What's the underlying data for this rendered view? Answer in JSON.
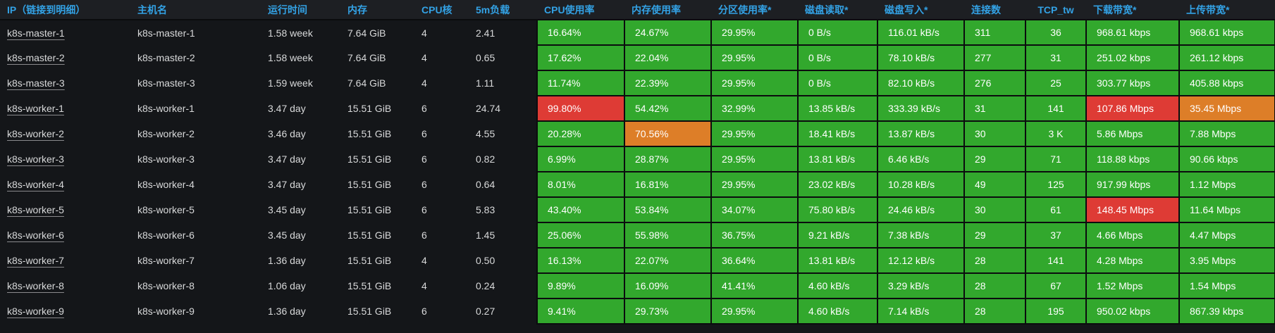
{
  "colors": {
    "header_text": "#33a2e5",
    "body_text": "#d8d9da",
    "ok": "#32a82d",
    "warn": "#dd7e28",
    "crit": "#de3b35",
    "panel_bg": "#141619",
    "header_bg": "#1d1f23"
  },
  "panel": {
    "columns": [
      {
        "label": "IP（链接到明细）",
        "key": "ip",
        "kind": "link"
      },
      {
        "label": "主机名",
        "key": "hostname",
        "kind": "text"
      },
      {
        "label": "运行时间",
        "key": "uptime",
        "kind": "text"
      },
      {
        "label": "内存",
        "key": "memory",
        "kind": "text"
      },
      {
        "label": "CPU核",
        "key": "cpu_cores",
        "kind": "text"
      },
      {
        "label": "5m负载",
        "key": "load_5m",
        "kind": "text"
      },
      {
        "label": "CPU使用率",
        "key": "cpu_usage",
        "kind": "metric"
      },
      {
        "label": "内存使用率",
        "key": "mem_usage",
        "kind": "metric"
      },
      {
        "label": "分区使用率*",
        "key": "partition_usage",
        "kind": "metric"
      },
      {
        "label": "磁盘读取*",
        "key": "disk_read",
        "kind": "metric"
      },
      {
        "label": "磁盘写入*",
        "key": "disk_write",
        "kind": "metric"
      },
      {
        "label": "连接数",
        "key": "connections",
        "kind": "metric"
      },
      {
        "label": "TCP_tw",
        "key": "tcp_tw",
        "kind": "metric",
        "align": "center"
      },
      {
        "label": "下载带宽*",
        "key": "download_bw",
        "kind": "metric"
      },
      {
        "label": "上传带宽*",
        "key": "upload_bw",
        "kind": "metric"
      }
    ],
    "rows": [
      {
        "ip": "k8s-master-1",
        "hostname": "k8s-master-1",
        "uptime": "1.58 week",
        "memory": "7.64 GiB",
        "cpu_cores": "4",
        "load_5m": "2.41",
        "cpu_usage": {
          "value": "16.64%",
          "level": "ok"
        },
        "mem_usage": {
          "value": "24.67%",
          "level": "ok"
        },
        "partition_usage": {
          "value": "29.95%",
          "level": "ok"
        },
        "disk_read": {
          "value": "0 B/s",
          "level": "ok"
        },
        "disk_write": {
          "value": "116.01 kB/s",
          "level": "ok"
        },
        "connections": {
          "value": "311",
          "level": "ok"
        },
        "tcp_tw": {
          "value": "36",
          "level": "ok"
        },
        "download_bw": {
          "value": "968.61 kbps",
          "level": "ok"
        },
        "upload_bw": {
          "value": "968.61 kbps",
          "level": "ok"
        }
      },
      {
        "ip": "k8s-master-2",
        "hostname": "k8s-master-2",
        "uptime": "1.58 week",
        "memory": "7.64 GiB",
        "cpu_cores": "4",
        "load_5m": "0.65",
        "cpu_usage": {
          "value": "17.62%",
          "level": "ok"
        },
        "mem_usage": {
          "value": "22.04%",
          "level": "ok"
        },
        "partition_usage": {
          "value": "29.95%",
          "level": "ok"
        },
        "disk_read": {
          "value": "0 B/s",
          "level": "ok"
        },
        "disk_write": {
          "value": "78.10 kB/s",
          "level": "ok"
        },
        "connections": {
          "value": "277",
          "level": "ok"
        },
        "tcp_tw": {
          "value": "31",
          "level": "ok"
        },
        "download_bw": {
          "value": "251.02 kbps",
          "level": "ok"
        },
        "upload_bw": {
          "value": "261.12 kbps",
          "level": "ok"
        }
      },
      {
        "ip": "k8s-master-3",
        "hostname": "k8s-master-3",
        "uptime": "1.59 week",
        "memory": "7.64 GiB",
        "cpu_cores": "4",
        "load_5m": "1.11",
        "cpu_usage": {
          "value": "11.74%",
          "level": "ok"
        },
        "mem_usage": {
          "value": "22.39%",
          "level": "ok"
        },
        "partition_usage": {
          "value": "29.95%",
          "level": "ok"
        },
        "disk_read": {
          "value": "0 B/s",
          "level": "ok"
        },
        "disk_write": {
          "value": "82.10 kB/s",
          "level": "ok"
        },
        "connections": {
          "value": "276",
          "level": "ok"
        },
        "tcp_tw": {
          "value": "25",
          "level": "ok"
        },
        "download_bw": {
          "value": "303.77 kbps",
          "level": "ok"
        },
        "upload_bw": {
          "value": "405.88 kbps",
          "level": "ok"
        }
      },
      {
        "ip": "k8s-worker-1",
        "hostname": "k8s-worker-1",
        "uptime": "3.47 day",
        "memory": "15.51 GiB",
        "cpu_cores": "6",
        "load_5m": "24.74",
        "cpu_usage": {
          "value": "99.80%",
          "level": "crit"
        },
        "mem_usage": {
          "value": "54.42%",
          "level": "ok"
        },
        "partition_usage": {
          "value": "32.99%",
          "level": "ok"
        },
        "disk_read": {
          "value": "13.85 kB/s",
          "level": "ok"
        },
        "disk_write": {
          "value": "333.39 kB/s",
          "level": "ok"
        },
        "connections": {
          "value": "31",
          "level": "ok"
        },
        "tcp_tw": {
          "value": "141",
          "level": "ok"
        },
        "download_bw": {
          "value": "107.86 Mbps",
          "level": "crit"
        },
        "upload_bw": {
          "value": "35.45 Mbps",
          "level": "warn"
        }
      },
      {
        "ip": "k8s-worker-2",
        "hostname": "k8s-worker-2",
        "uptime": "3.46 day",
        "memory": "15.51 GiB",
        "cpu_cores": "6",
        "load_5m": "4.55",
        "cpu_usage": {
          "value": "20.28%",
          "level": "ok"
        },
        "mem_usage": {
          "value": "70.56%",
          "level": "warn"
        },
        "partition_usage": {
          "value": "29.95%",
          "level": "ok"
        },
        "disk_read": {
          "value": "18.41 kB/s",
          "level": "ok"
        },
        "disk_write": {
          "value": "13.87 kB/s",
          "level": "ok"
        },
        "connections": {
          "value": "30",
          "level": "ok"
        },
        "tcp_tw": {
          "value": "3 K",
          "level": "ok"
        },
        "download_bw": {
          "value": "5.86 Mbps",
          "level": "ok"
        },
        "upload_bw": {
          "value": "7.88 Mbps",
          "level": "ok"
        }
      },
      {
        "ip": "k8s-worker-3",
        "hostname": "k8s-worker-3",
        "uptime": "3.47 day",
        "memory": "15.51 GiB",
        "cpu_cores": "6",
        "load_5m": "0.82",
        "cpu_usage": {
          "value": "6.99%",
          "level": "ok"
        },
        "mem_usage": {
          "value": "28.87%",
          "level": "ok"
        },
        "partition_usage": {
          "value": "29.95%",
          "level": "ok"
        },
        "disk_read": {
          "value": "13.81 kB/s",
          "level": "ok"
        },
        "disk_write": {
          "value": "6.46 kB/s",
          "level": "ok"
        },
        "connections": {
          "value": "29",
          "level": "ok"
        },
        "tcp_tw": {
          "value": "71",
          "level": "ok"
        },
        "download_bw": {
          "value": "118.88 kbps",
          "level": "ok"
        },
        "upload_bw": {
          "value": "90.66 kbps",
          "level": "ok"
        }
      },
      {
        "ip": "k8s-worker-4",
        "hostname": "k8s-worker-4",
        "uptime": "3.47 day",
        "memory": "15.51 GiB",
        "cpu_cores": "6",
        "load_5m": "0.64",
        "cpu_usage": {
          "value": "8.01%",
          "level": "ok"
        },
        "mem_usage": {
          "value": "16.81%",
          "level": "ok"
        },
        "partition_usage": {
          "value": "29.95%",
          "level": "ok"
        },
        "disk_read": {
          "value": "23.02 kB/s",
          "level": "ok"
        },
        "disk_write": {
          "value": "10.28 kB/s",
          "level": "ok"
        },
        "connections": {
          "value": "49",
          "level": "ok"
        },
        "tcp_tw": {
          "value": "125",
          "level": "ok"
        },
        "download_bw": {
          "value": "917.99 kbps",
          "level": "ok"
        },
        "upload_bw": {
          "value": "1.12 Mbps",
          "level": "ok"
        }
      },
      {
        "ip": "k8s-worker-5",
        "hostname": "k8s-worker-5",
        "uptime": "3.45 day",
        "memory": "15.51 GiB",
        "cpu_cores": "6",
        "load_5m": "5.83",
        "cpu_usage": {
          "value": "43.40%",
          "level": "ok"
        },
        "mem_usage": {
          "value": "53.84%",
          "level": "ok"
        },
        "partition_usage": {
          "value": "34.07%",
          "level": "ok"
        },
        "disk_read": {
          "value": "75.80 kB/s",
          "level": "ok"
        },
        "disk_write": {
          "value": "24.46 kB/s",
          "level": "ok"
        },
        "connections": {
          "value": "30",
          "level": "ok"
        },
        "tcp_tw": {
          "value": "61",
          "level": "ok"
        },
        "download_bw": {
          "value": "148.45 Mbps",
          "level": "crit"
        },
        "upload_bw": {
          "value": "11.64 Mbps",
          "level": "ok"
        }
      },
      {
        "ip": "k8s-worker-6",
        "hostname": "k8s-worker-6",
        "uptime": "3.45 day",
        "memory": "15.51 GiB",
        "cpu_cores": "6",
        "load_5m": "1.45",
        "cpu_usage": {
          "value": "25.06%",
          "level": "ok"
        },
        "mem_usage": {
          "value": "55.98%",
          "level": "ok"
        },
        "partition_usage": {
          "value": "36.75%",
          "level": "ok"
        },
        "disk_read": {
          "value": "9.21 kB/s",
          "level": "ok"
        },
        "disk_write": {
          "value": "7.38 kB/s",
          "level": "ok"
        },
        "connections": {
          "value": "29",
          "level": "ok"
        },
        "tcp_tw": {
          "value": "37",
          "level": "ok"
        },
        "download_bw": {
          "value": "4.66 Mbps",
          "level": "ok"
        },
        "upload_bw": {
          "value": "4.47 Mbps",
          "level": "ok"
        }
      },
      {
        "ip": "k8s-worker-7",
        "hostname": "k8s-worker-7",
        "uptime": "1.36 day",
        "memory": "15.51 GiB",
        "cpu_cores": "4",
        "load_5m": "0.50",
        "cpu_usage": {
          "value": "16.13%",
          "level": "ok"
        },
        "mem_usage": {
          "value": "22.07%",
          "level": "ok"
        },
        "partition_usage": {
          "value": "36.64%",
          "level": "ok"
        },
        "disk_read": {
          "value": "13.81 kB/s",
          "level": "ok"
        },
        "disk_write": {
          "value": "12.12 kB/s",
          "level": "ok"
        },
        "connections": {
          "value": "28",
          "level": "ok"
        },
        "tcp_tw": {
          "value": "141",
          "level": "ok"
        },
        "download_bw": {
          "value": "4.28 Mbps",
          "level": "ok"
        },
        "upload_bw": {
          "value": "3.95 Mbps",
          "level": "ok"
        }
      },
      {
        "ip": "k8s-worker-8",
        "hostname": "k8s-worker-8",
        "uptime": "1.06 day",
        "memory": "15.51 GiB",
        "cpu_cores": "4",
        "load_5m": "0.24",
        "cpu_usage": {
          "value": "9.89%",
          "level": "ok"
        },
        "mem_usage": {
          "value": "16.09%",
          "level": "ok"
        },
        "partition_usage": {
          "value": "41.41%",
          "level": "ok"
        },
        "disk_read": {
          "value": "4.60 kB/s",
          "level": "ok"
        },
        "disk_write": {
          "value": "3.29 kB/s",
          "level": "ok"
        },
        "connections": {
          "value": "28",
          "level": "ok"
        },
        "tcp_tw": {
          "value": "67",
          "level": "ok"
        },
        "download_bw": {
          "value": "1.52 Mbps",
          "level": "ok"
        },
        "upload_bw": {
          "value": "1.54 Mbps",
          "level": "ok"
        }
      },
      {
        "ip": "k8s-worker-9",
        "hostname": "k8s-worker-9",
        "uptime": "1.36 day",
        "memory": "15.51 GiB",
        "cpu_cores": "6",
        "load_5m": "0.27",
        "cpu_usage": {
          "value": "9.41%",
          "level": "ok"
        },
        "mem_usage": {
          "value": "29.73%",
          "level": "ok"
        },
        "partition_usage": {
          "value": "29.95%",
          "level": "ok"
        },
        "disk_read": {
          "value": "4.60 kB/s",
          "level": "ok"
        },
        "disk_write": {
          "value": "7.14 kB/s",
          "level": "ok"
        },
        "connections": {
          "value": "28",
          "level": "ok"
        },
        "tcp_tw": {
          "value": "195",
          "level": "ok"
        },
        "download_bw": {
          "value": "950.02 kbps",
          "level": "ok"
        },
        "upload_bw": {
          "value": "867.39 kbps",
          "level": "ok"
        }
      }
    ]
  }
}
